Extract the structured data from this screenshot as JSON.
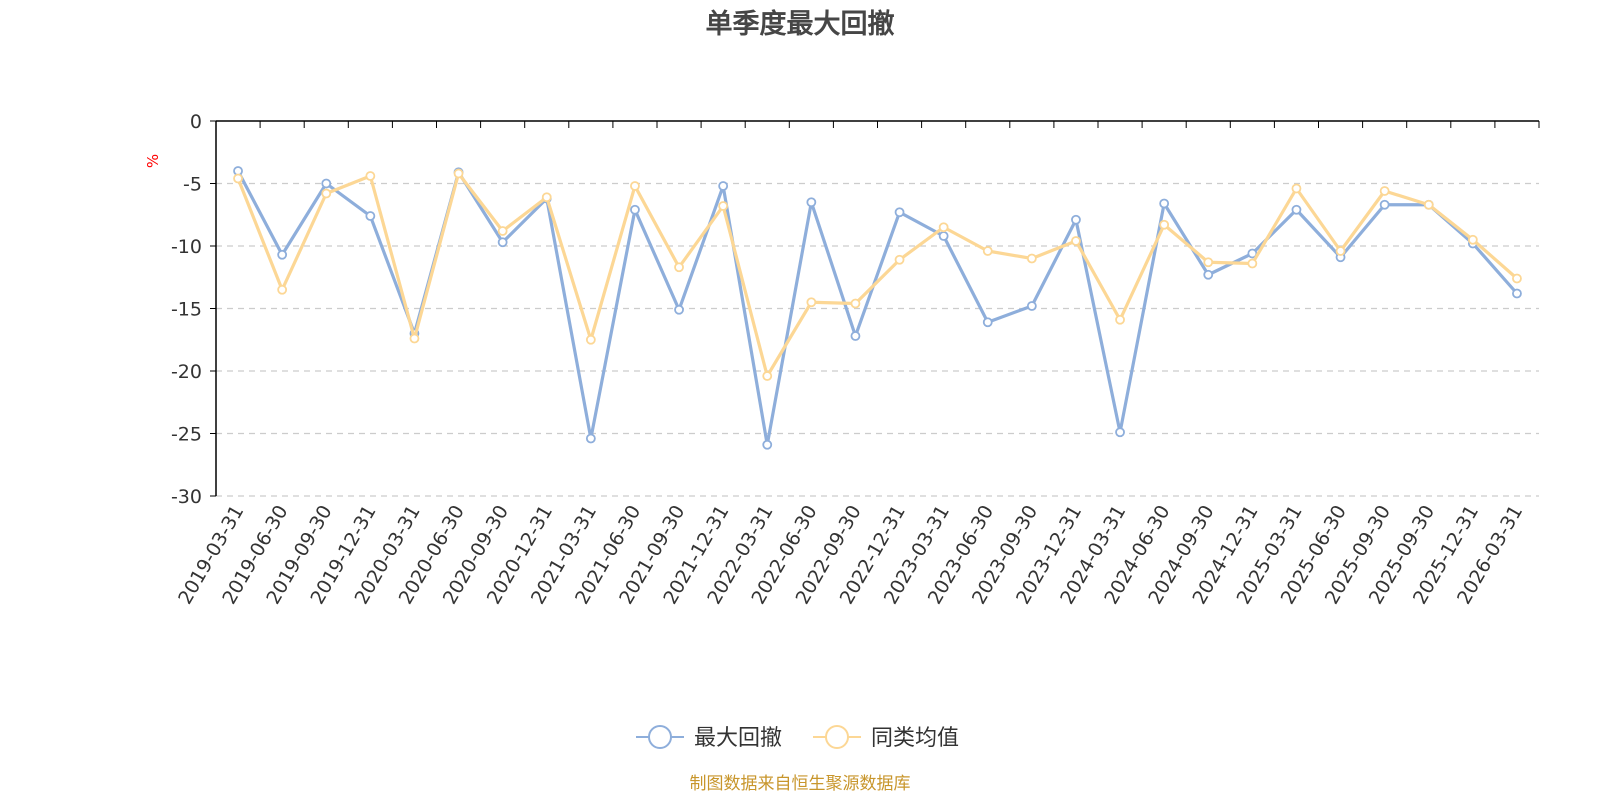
{
  "chart_data": {
    "type": "line",
    "title": "单季度最大回撤",
    "y_unit": "%",
    "ylim": [
      -30,
      0
    ],
    "y_ticks": [
      0,
      -5,
      -10,
      -15,
      -20,
      -25,
      -30
    ],
    "grid": true,
    "legend_position": "bottom-center",
    "categories": [
      "2019-03-31",
      "2019-06-30",
      "2019-09-30",
      "2019-12-31",
      "2020-03-31",
      "2020-06-30",
      "2020-09-30",
      "2020-12-31",
      "2021-03-31",
      "2021-06-30",
      "2021-09-30",
      "2021-12-31",
      "2022-03-31",
      "2022-06-30",
      "2022-09-30",
      "2022-12-31",
      "2023-03-31",
      "2023-06-30",
      "2023-09-30",
      "2023-12-31",
      "2024-03-31",
      "2024-06-30",
      "2024-09-30",
      "2024-12-31",
      "2025-03-31",
      "2025-06-30",
      "2025-09-30",
      "2025-09-30",
      "2025-12-31",
      "2026-03-31"
    ],
    "series": [
      {
        "name": "最大回撤",
        "color": "#8eaedb",
        "values": [
          -4.0,
          -10.7,
          -5.0,
          -7.6,
          -17.0,
          -4.1,
          -9.7,
          -6.2,
          -25.4,
          -7.1,
          -15.1,
          -5.2,
          -25.9,
          -6.5,
          -17.2,
          -7.3,
          -9.2,
          -16.1,
          -14.8,
          -7.9,
          -24.9,
          -6.6,
          -12.3,
          -10.6,
          -7.1,
          -10.9,
          -6.7,
          -6.7,
          -9.8,
          -13.8
        ]
      },
      {
        "name": "同类均值",
        "color": "#fcd795",
        "values": [
          -4.6,
          -13.5,
          -5.8,
          -4.4,
          -17.4,
          -4.2,
          -8.8,
          -6.1,
          -17.5,
          -5.2,
          -11.7,
          -6.8,
          -20.4,
          -14.5,
          -14.6,
          -11.1,
          -8.5,
          -10.4,
          -11.0,
          -9.6,
          -15.9,
          -8.3,
          -11.3,
          -11.4,
          -5.4,
          -10.4,
          -5.6,
          -6.7,
          -9.5,
          -12.6
        ]
      }
    ],
    "source": "制图数据来自恒生聚源数据库"
  }
}
